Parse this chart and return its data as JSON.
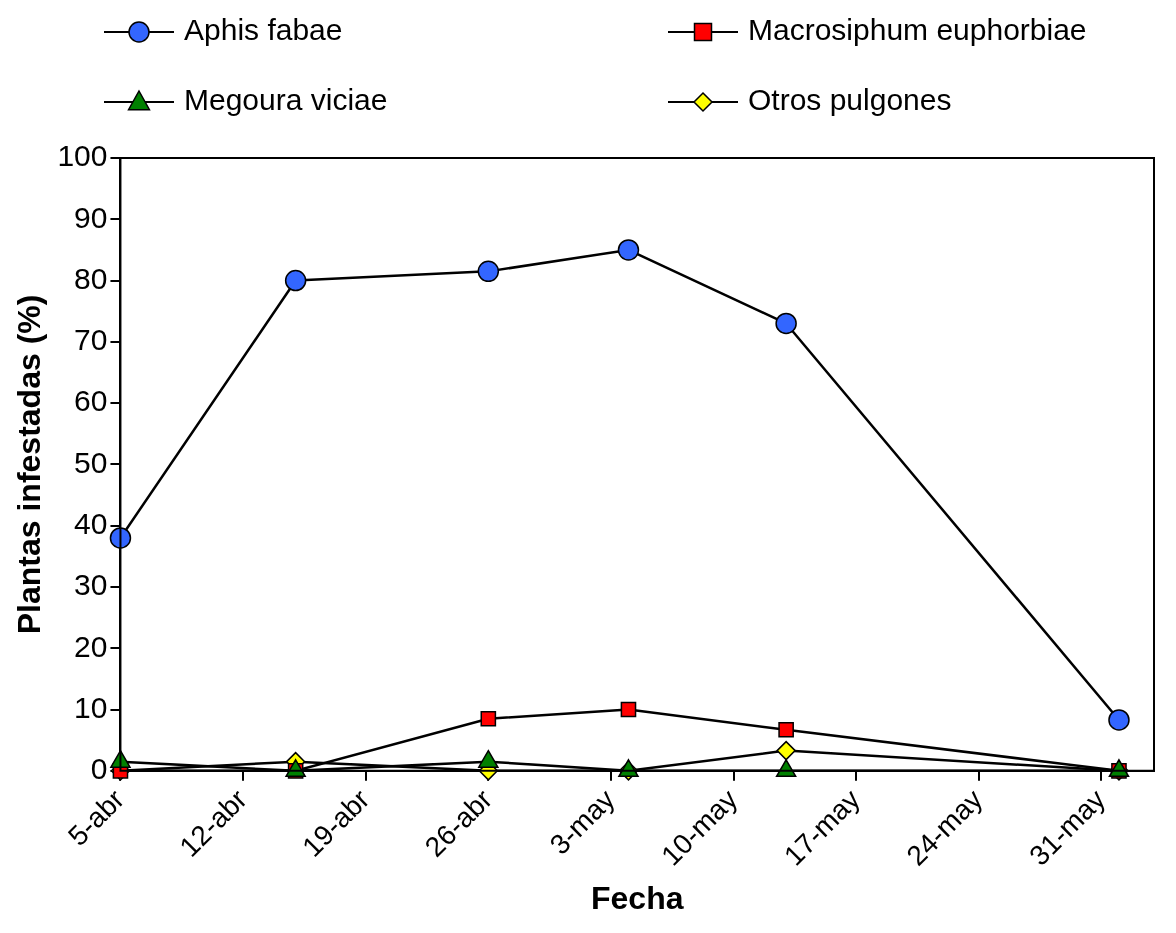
{
  "chart_data": {
    "type": "line",
    "xlabel": "Fecha",
    "ylabel": "Plantas infestadas (%)",
    "x": [
      "--04-05",
      "--04-15",
      "--04-26",
      "--05-04",
      "--05-13",
      "--06-01"
    ],
    "series": [
      {
        "name": "Aphis fabae",
        "color": "#3366ff",
        "marker": "circle",
        "values": [
          38,
          80,
          81.5,
          85,
          73,
          8.3
        ]
      },
      {
        "name": "Macrosiphum euphorbiae",
        "color": "#ff0000",
        "marker": "square",
        "values": [
          0,
          0,
          8.5,
          10,
          6.7,
          0
        ]
      },
      {
        "name": "Megoura viciae",
        "color": "#008000",
        "marker": "triangle",
        "values": [
          1.5,
          0,
          1.5,
          0,
          0,
          0
        ]
      },
      {
        "name": "Otros pulgones",
        "color": "#ffff00",
        "marker": "diamond",
        "values": [
          0,
          1.5,
          0,
          0,
          3.3,
          0
        ]
      }
    ],
    "xlim": [
      "--04-05",
      "--06-03"
    ],
    "xticks": [
      {
        "value": "--04-05",
        "label": "5-abr"
      },
      {
        "value": "--04-12",
        "label": "12-abr"
      },
      {
        "value": "--04-19",
        "label": "19-abr"
      },
      {
        "value": "--04-26",
        "label": "26-abr"
      },
      {
        "value": "--05-03",
        "label": "3-may"
      },
      {
        "value": "--05-10",
        "label": "10-may"
      },
      {
        "value": "--05-17",
        "label": "17-may"
      },
      {
        "value": "--05-24",
        "label": "24-may"
      },
      {
        "value": "--05-31",
        "label": "31-may"
      }
    ],
    "ylim": [
      0,
      100
    ],
    "yticks": [
      0,
      10,
      20,
      30,
      40,
      50,
      60,
      70,
      80,
      90,
      100
    ],
    "grid": false,
    "legend": "top",
    "line_style": "solid"
  }
}
